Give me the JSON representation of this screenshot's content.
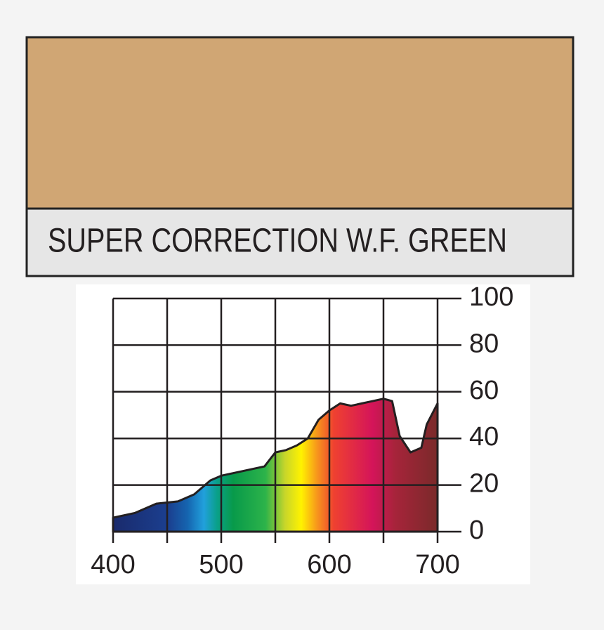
{
  "swatch": {
    "color": "#d0a674",
    "label": "SUPER CORRECTION W.F. GREEN"
  },
  "chart_data": {
    "type": "area",
    "x": [
      400,
      420,
      440,
      460,
      475,
      490,
      500,
      520,
      540,
      550,
      560,
      570,
      580,
      590,
      600,
      610,
      620,
      630,
      640,
      650,
      658,
      665,
      675,
      685,
      690,
      700
    ],
    "values": [
      6,
      8,
      12,
      13,
      16,
      22,
      24,
      26,
      28,
      34,
      35,
      37,
      40,
      48,
      52,
      55,
      54,
      55,
      56,
      57,
      56,
      41,
      34,
      36,
      46,
      55
    ],
    "xlim": [
      400,
      700
    ],
    "ylim": [
      0,
      100
    ],
    "xticks": [
      400,
      500,
      600,
      700
    ],
    "xminorticks": [
      450,
      550,
      650
    ],
    "yticks": [
      0,
      20,
      40,
      60,
      80,
      100
    ],
    "grid": true
  }
}
